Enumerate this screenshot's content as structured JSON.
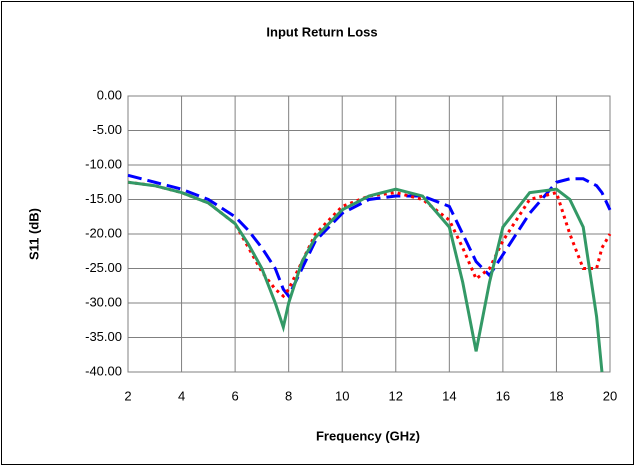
{
  "chart_data": {
    "type": "line",
    "title": "Input Return Loss",
    "xlabel": "Frequency (GHz)",
    "ylabel": "S11 (dB)",
    "x": [
      2,
      3,
      4,
      5,
      6,
      6.5,
      7,
      7.5,
      7.8,
      8,
      8.5,
      9,
      10,
      11,
      12,
      13,
      14,
      14.5,
      15,
      15.5,
      16,
      17,
      18,
      18.5,
      19,
      19.5,
      19.7,
      20
    ],
    "series": [
      {
        "color": "#0000ff",
        "style": "dashed",
        "values": [
          -11.5,
          -12.5,
          -13.5,
          -15,
          -17.5,
          -19.5,
          -22,
          -25,
          -28,
          -29,
          -25,
          -21,
          -17,
          -15,
          -14.5,
          -14.5,
          -16,
          -20,
          -24,
          -26,
          -23,
          -17,
          -12.5,
          -12,
          -12,
          -13,
          -14,
          -16.5
        ]
      },
      {
        "color": "#ff0000",
        "style": "dotted",
        "values": [
          -12.5,
          -13,
          -14,
          -15.5,
          -18.5,
          -22,
          -25.5,
          -28,
          -29,
          -28,
          -24,
          -20,
          -16,
          -14.5,
          -14,
          -15,
          -18,
          -22,
          -26.5,
          -25,
          -21,
          -15,
          -14,
          -20,
          -25,
          -25,
          -22,
          -20
        ]
      },
      {
        "color": "#339966",
        "style": "solid",
        "values": [
          -12.5,
          -13,
          -14,
          -15.5,
          -18.5,
          -21.5,
          -25,
          -30,
          -33.5,
          -30,
          -24,
          -20.5,
          -16.5,
          -14.5,
          -13.5,
          -14.5,
          -19,
          -27,
          -37,
          -27,
          -19,
          -14,
          -13.5,
          -15,
          -19,
          -32,
          -40,
          null
        ]
      }
    ],
    "xlim": [
      2,
      20
    ],
    "xticks": [
      2,
      4,
      6,
      8,
      10,
      12,
      14,
      16,
      18,
      20
    ],
    "ylim": [
      -40,
      0
    ],
    "yticks": [
      {
        "value": 0,
        "label": "0.00"
      },
      {
        "value": -5,
        "label": "-5.00"
      },
      {
        "value": -10,
        "label": "-10.00"
      },
      {
        "value": -15,
        "label": "-15.00"
      },
      {
        "value": -20,
        "label": "-20.00"
      },
      {
        "value": -25,
        "label": "-25.00"
      },
      {
        "value": -30,
        "label": "-30.00"
      },
      {
        "value": -35,
        "label": "-35.00"
      },
      {
        "value": -40,
        "label": "-40.00"
      }
    ],
    "grid": true
  }
}
